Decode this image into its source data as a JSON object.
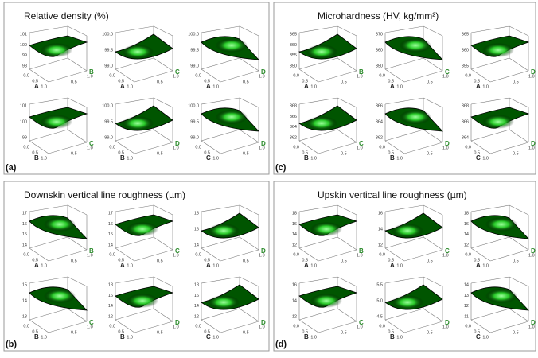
{
  "panels": [
    {
      "title": "Relative density  (%)",
      "label": "(a)",
      "subplots": [
        {
          "x_axis": "A",
          "y_axis": "B",
          "zticks": [
            "101",
            "100",
            "99",
            "98"
          ]
        },
        {
          "x_axis": "A",
          "y_axis": "C",
          "zticks": [
            "100.0",
            "99.5",
            "99.0"
          ]
        },
        {
          "x_axis": "A",
          "y_axis": "D",
          "zticks": [
            "100.0",
            "99.5",
            "99.0"
          ]
        },
        {
          "x_axis": "B",
          "y_axis": "C",
          "zticks": [
            "101",
            "100",
            "99"
          ]
        },
        {
          "x_axis": "B",
          "y_axis": "D",
          "zticks": [
            "100.0",
            "99.5",
            "99.0"
          ]
        },
        {
          "x_axis": "C",
          "y_axis": "D",
          "zticks": [
            "100.0",
            "99.5",
            "99.0"
          ]
        }
      ]
    },
    {
      "title": "Microhardness (HV, kg/mm²)",
      "label": "(c)",
      "subplots": [
        {
          "x_axis": "A",
          "y_axis": "B",
          "zticks": [
            "365",
            "360",
            "355",
            "350"
          ]
        },
        {
          "x_axis": "A",
          "y_axis": "C",
          "zticks": [
            "370",
            "360",
            "350"
          ]
        },
        {
          "x_axis": "A",
          "y_axis": "D",
          "zticks": [
            "365",
            "360",
            "355"
          ]
        },
        {
          "x_axis": "B",
          "y_axis": "C",
          "zticks": [
            "368",
            "366",
            "364",
            "362"
          ]
        },
        {
          "x_axis": "B",
          "y_axis": "D",
          "zticks": [
            "366",
            "364",
            "362"
          ]
        },
        {
          "x_axis": "C",
          "y_axis": "D",
          "zticks": [
            "368",
            "366",
            "364"
          ]
        }
      ]
    },
    {
      "title": "Downskin vertical line roughness (µm)",
      "label": "(b)",
      "subplots": [
        {
          "x_axis": "A",
          "y_axis": "B",
          "zticks": [
            "17",
            "16",
            "15",
            "14"
          ]
        },
        {
          "x_axis": "A",
          "y_axis": "C",
          "zticks": [
            "17",
            "16",
            "15",
            "14"
          ]
        },
        {
          "x_axis": "A",
          "y_axis": "D",
          "zticks": [
            "18",
            "16",
            "14"
          ]
        },
        {
          "x_axis": "B",
          "y_axis": "C",
          "zticks": [
            "15",
            "14",
            "13"
          ]
        },
        {
          "x_axis": "B",
          "y_axis": "D",
          "zticks": [
            "18",
            "16",
            "14",
            "12"
          ]
        },
        {
          "x_axis": "C",
          "y_axis": "D",
          "zticks": [
            "18",
            "16",
            "14",
            "12"
          ]
        }
      ]
    },
    {
      "title": "Upskin vertical line roughness (µm)",
      "label": "(d)",
      "subplots": [
        {
          "x_axis": "A",
          "y_axis": "B",
          "zticks": [
            "18",
            "16",
            "14",
            "12"
          ]
        },
        {
          "x_axis": "A",
          "y_axis": "C",
          "zticks": [
            "16",
            "14",
            "12"
          ]
        },
        {
          "x_axis": "A",
          "y_axis": "D",
          "zticks": [
            "18",
            "16",
            "14",
            "12"
          ]
        },
        {
          "x_axis": "B",
          "y_axis": "C",
          "zticks": [
            "16",
            "14",
            "12"
          ]
        },
        {
          "x_axis": "B",
          "y_axis": "D",
          "zticks": [
            "5.5",
            "5.0",
            "4.5"
          ]
        },
        {
          "x_axis": "C",
          "y_axis": "D",
          "zticks": [
            "14",
            "13",
            "12",
            "11"
          ]
        }
      ]
    }
  ],
  "axis_ticks": [
    "0.0",
    "0.5",
    "1.0"
  ]
}
